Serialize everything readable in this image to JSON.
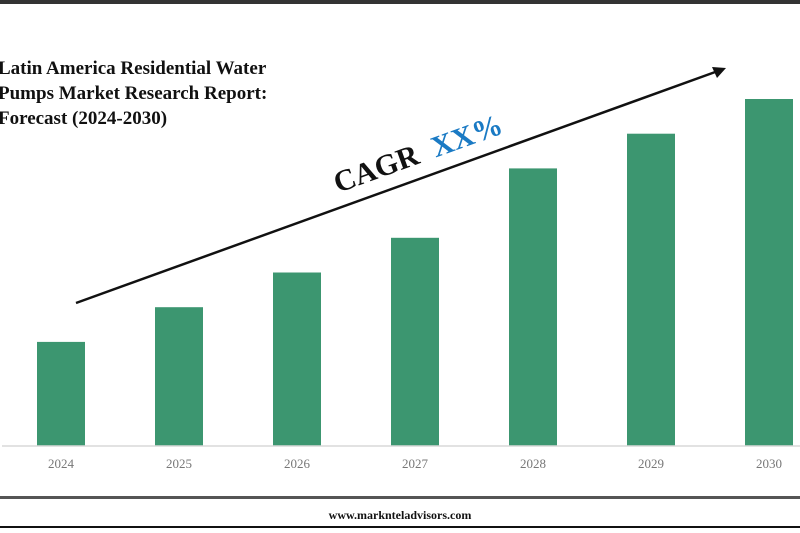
{
  "chart_data": {
    "type": "bar",
    "title_lines": [
      "Latin America Residential Water",
      "Pumps Market Research Report:",
      "Forecast (2024-2030)"
    ],
    "categories": [
      "2024",
      "2025",
      "2026",
      "2027",
      "2028",
      "2029",
      "2030"
    ],
    "values": [
      3,
      4,
      5,
      6,
      8,
      9,
      10
    ],
    "ylim": [
      0,
      10
    ],
    "xlabel": "",
    "ylabel": "",
    "grid": false,
    "bar_color": "#3c9670",
    "annotation": {
      "prefix": "CAGR",
      "value": "XX%",
      "value_color": "#1a7ac4"
    }
  },
  "footer": {
    "website": "www.marknteladvisors.com"
  }
}
